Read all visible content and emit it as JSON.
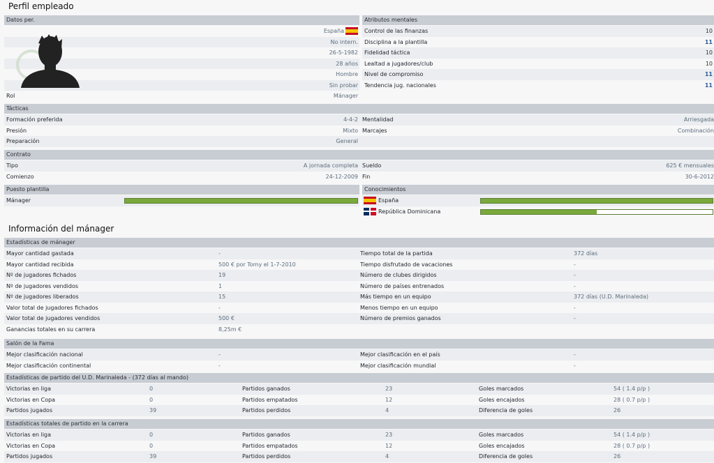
{
  "profile": {
    "title": "Perfil empleado",
    "personal": {
      "header": "Datos per.",
      "nationality": "España",
      "intl": "No intern.",
      "dob": "26-5-1982",
      "age": "28 años",
      "gender": "Hombre",
      "status": "Sin probar",
      "role_label": "Rol",
      "role_value": "Mánager"
    },
    "mental": {
      "header": "Atributos mentales",
      "items": [
        {
          "label": "Control de las finanzas",
          "value": "10",
          "highlight": false
        },
        {
          "label": "Disciplina a la plantilla",
          "value": "11",
          "highlight": true
        },
        {
          "label": "Fidelidad táctica",
          "value": "10",
          "highlight": false
        },
        {
          "label": "Lealtad a jugadores/club",
          "value": "10",
          "highlight": false
        },
        {
          "label": "Nivel de compromiso",
          "value": "11",
          "highlight": true
        },
        {
          "label": "Tendencia jug. nacionales",
          "value": "11",
          "highlight": true
        }
      ]
    },
    "tactics": {
      "header": "Tácticas",
      "formation_label": "Formación preferida",
      "formation_value": "4-4-2",
      "mentality_label": "Mentalidad",
      "mentality_value": "Arriesgada",
      "pressure_label": "Presión",
      "pressure_value": "Mixto",
      "marking_label": "Marcajes",
      "marking_value": "Combinación",
      "prep_label": "Preparación",
      "prep_value": "General"
    },
    "contract": {
      "header": "Contrato",
      "type_label": "Tipo",
      "type_value": "A jornada completa",
      "salary_label": "Sueldo",
      "salary_value": "625 € mensuales",
      "start_label": "Comienzo",
      "start_value": "24-12-2009",
      "end_label": "Fin",
      "end_value": "30-6-2012"
    },
    "position": {
      "header": "Puesto plantilla",
      "label": "Mánager",
      "level": 1.0
    },
    "knowledge": {
      "header": "Conocimientos",
      "items": [
        {
          "label": "España",
          "level": 1.0
        },
        {
          "label": "República Dominicana",
          "level": 0.5
        }
      ]
    }
  },
  "manager_info": {
    "title": "Información del mánager",
    "stats": {
      "header": "Estadísticas de mánager",
      "left": [
        {
          "label": "Mayor cantidad gastada",
          "value": "-"
        },
        {
          "label": "Mayor cantidad recibida",
          "value": "500 € por Tomy el 1-7-2010"
        },
        {
          "label": "Nº de jugadores fichados",
          "value": "19"
        },
        {
          "label": "Nº de jugadores vendidos",
          "value": "1"
        },
        {
          "label": "Nº de jugadores liberados",
          "value": "15"
        },
        {
          "label": "Valor total de jugadores fichados",
          "value": "-"
        },
        {
          "label": "Valor total de jugadores vendidos",
          "value": "500 €"
        },
        {
          "label": "Ganancias totales en su carrera",
          "value": "8,25m €"
        }
      ],
      "right": [
        {
          "label": "Tiempo total de la partida",
          "value": "372 días"
        },
        {
          "label": "Tiempo disfrutado de vacaciones",
          "value": "-"
        },
        {
          "label": "Número de clubes dirigidos",
          "value": "-"
        },
        {
          "label": "Número de países entrenados",
          "value": "-"
        },
        {
          "label": "Más tiempo en un equipo",
          "value": "372 días (U.D. Marinaleda)"
        },
        {
          "label": "Menos tiempo en un equipo",
          "value": "-"
        },
        {
          "label": "Número de premios ganados",
          "value": "-"
        }
      ]
    },
    "fame": {
      "header": "Salón de la Fama",
      "national_label": "Mejor clasificación nacional",
      "national_value": "-",
      "country_label": "Mejor clasificación en el país",
      "country_value": "-",
      "continental_label": "Mejor clasificación continental",
      "continental_value": "-",
      "world_label": "Mejor clasificación mundial",
      "world_value": "-"
    },
    "club_stats": {
      "header": "Estadísticas de partido del U.D. Marinaleda - (372 días al mando)",
      "rows": [
        [
          "Victorias en liga",
          "0",
          "Partidos ganados",
          "23",
          "Goles marcados",
          "54 ( 1.4 p/p )"
        ],
        [
          "Victorias en Copa",
          "0",
          "Partidos empatados",
          "12",
          "Goles encajados",
          "28 ( 0.7 p/p )"
        ],
        [
          "Partidos jugados",
          "39",
          "Partidos perdidos",
          "4",
          "Diferencia de goles",
          "26"
        ]
      ]
    },
    "career_stats": {
      "header": "Estadísticas totales de partido en la carrera",
      "rows": [
        [
          "Victorias en liga",
          "0",
          "Partidos ganados",
          "23",
          "Goles marcados",
          "54 ( 1.4 p/p )"
        ],
        [
          "Victorias en Copa",
          "0",
          "Partidos empatados",
          "12",
          "Goles encajados",
          "28 ( 0.7 p/p )"
        ],
        [
          "Partidos jugados",
          "39",
          "Partidos perdidos",
          "4",
          "Diferencia de goles",
          "26"
        ]
      ]
    }
  }
}
